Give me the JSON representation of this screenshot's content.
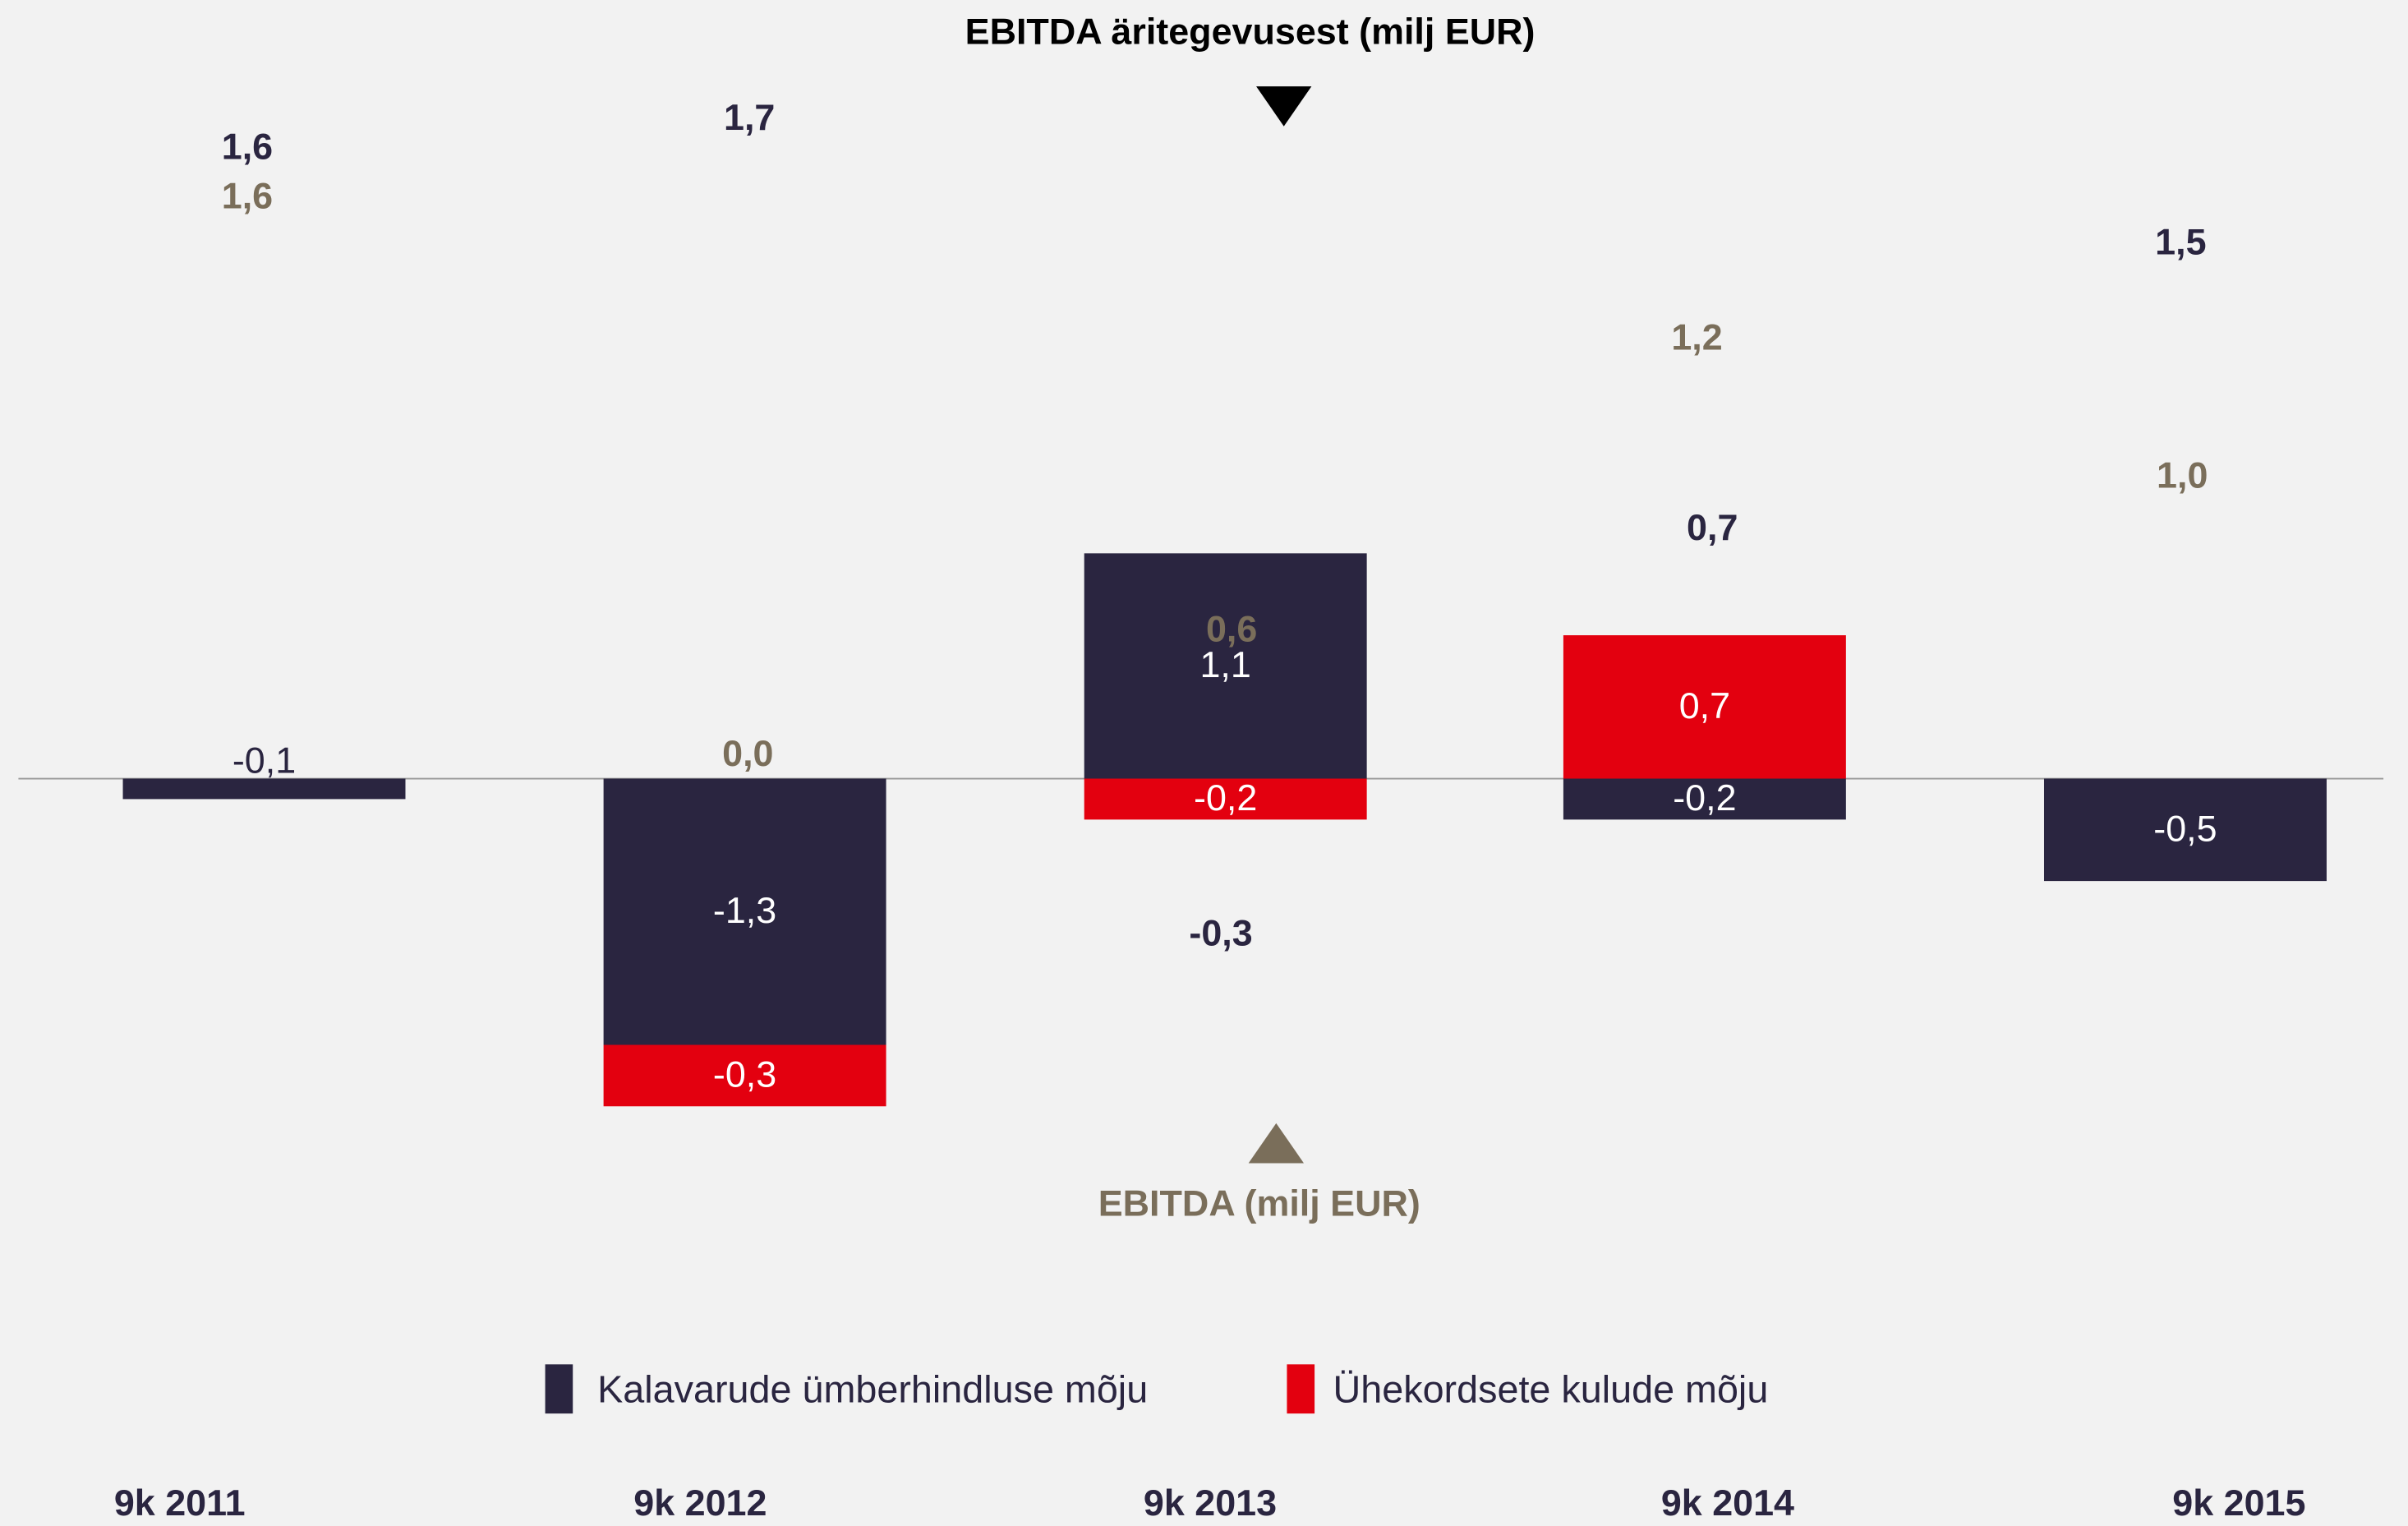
{
  "chart_data": {
    "type": "bar",
    "stacked": true,
    "categories": [
      "9k 2011",
      "9k 2012",
      "9k 2013",
      "9k 2014",
      "9k 2015"
    ],
    "series": [
      {
        "name": "Kalavarude ümberhindluse mõju",
        "color": "#2a2540",
        "values": [
          -0.1,
          -1.3,
          1.1,
          -0.2,
          -0.5
        ],
        "value_labels": [
          "-0,1",
          "-1,3",
          "1,1",
          "-0,2",
          "-0,5"
        ]
      },
      {
        "name": "Ühekordsete kulude mõju",
        "color": "#e3000f",
        "values": [
          null,
          -0.3,
          -0.2,
          0.7,
          null
        ],
        "value_labels": [
          null,
          "-0,3",
          "-0,2",
          "0,7",
          null
        ]
      }
    ],
    "annotations": [
      {
        "name": "EBITDA äritegevusest (milj EUR)",
        "color": "#2a2540",
        "values": [
          1.6,
          1.7,
          -0.3,
          0.7,
          1.5
        ],
        "value_labels": [
          "1,6",
          "1,7",
          "-0,3",
          "0,7",
          "1,5"
        ]
      },
      {
        "name": "EBITDA (milj EUR)",
        "color": "#7a6e5a",
        "values": [
          1.6,
          0.0,
          0.6,
          1.2,
          1.0
        ],
        "value_labels": [
          "1,6",
          "0,0",
          "0,6",
          "1,2",
          "1,0"
        ]
      }
    ],
    "ylim": [
      -2.95,
      3.5
    ],
    "legend": "bottom"
  }
}
